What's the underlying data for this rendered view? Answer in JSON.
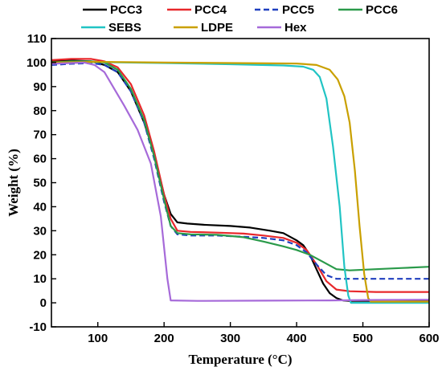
{
  "chart_data": {
    "type": "line",
    "title": "",
    "xlabel": "Temperature (°C)",
    "ylabel": "Weight (%)",
    "xlim": [
      30,
      600
    ],
    "ylim": [
      -10,
      110
    ],
    "xticks": [
      100,
      200,
      300,
      400,
      500,
      600
    ],
    "yticks": [
      -10,
      0,
      10,
      20,
      30,
      40,
      50,
      60,
      70,
      80,
      90,
      100,
      110
    ],
    "grid": false,
    "legend": "top",
    "series": [
      {
        "name": "PCC3",
        "color": "#000000",
        "dash": "solid",
        "points": [
          [
            30,
            100.5
          ],
          [
            60,
            100.8
          ],
          [
            90,
            100.5
          ],
          [
            110,
            99
          ],
          [
            130,
            96
          ],
          [
            150,
            88
          ],
          [
            170,
            75
          ],
          [
            185,
            62
          ],
          [
            200,
            45
          ],
          [
            210,
            37
          ],
          [
            220,
            33.5
          ],
          [
            235,
            33
          ],
          [
            260,
            32.5
          ],
          [
            300,
            32
          ],
          [
            330,
            31.3
          ],
          [
            360,
            30
          ],
          [
            380,
            29
          ],
          [
            400,
            26
          ],
          [
            410,
            24
          ],
          [
            420,
            20
          ],
          [
            430,
            14
          ],
          [
            440,
            8
          ],
          [
            450,
            4
          ],
          [
            460,
            2
          ],
          [
            470,
            1
          ],
          [
            480,
            0.8
          ],
          [
            520,
            0.8
          ],
          [
            600,
            0.8
          ]
        ]
      },
      {
        "name": "PCC4",
        "color": "#e8282b",
        "dash": "solid",
        "points": [
          [
            30,
            101
          ],
          [
            60,
            101.5
          ],
          [
            90,
            101.5
          ],
          [
            110,
            100.5
          ],
          [
            130,
            98
          ],
          [
            150,
            91
          ],
          [
            170,
            78
          ],
          [
            185,
            63
          ],
          [
            200,
            45
          ],
          [
            210,
            35
          ],
          [
            220,
            30
          ],
          [
            240,
            29.5
          ],
          [
            280,
            29.2
          ],
          [
            320,
            28.8
          ],
          [
            350,
            28
          ],
          [
            380,
            27
          ],
          [
            400,
            25
          ],
          [
            415,
            22
          ],
          [
            430,
            16
          ],
          [
            445,
            9
          ],
          [
            460,
            5.5
          ],
          [
            480,
            4.8
          ],
          [
            520,
            4.5
          ],
          [
            600,
            4.5
          ]
        ]
      },
      {
        "name": "PCC5",
        "color": "#1f3fbf",
        "dash": "dashed",
        "points": [
          [
            30,
            99
          ],
          [
            60,
            99.5
          ],
          [
            90,
            99.8
          ],
          [
            110,
            99
          ],
          [
            130,
            96
          ],
          [
            150,
            88
          ],
          [
            170,
            75
          ],
          [
            185,
            60
          ],
          [
            200,
            42
          ],
          [
            210,
            32
          ],
          [
            220,
            28.5
          ],
          [
            240,
            28
          ],
          [
            280,
            28
          ],
          [
            320,
            27.5
          ],
          [
            350,
            27
          ],
          [
            380,
            26
          ],
          [
            400,
            24
          ],
          [
            415,
            21
          ],
          [
            430,
            16
          ],
          [
            445,
            11.5
          ],
          [
            460,
            10
          ],
          [
            480,
            10
          ],
          [
            520,
            10
          ],
          [
            600,
            10
          ]
        ]
      },
      {
        "name": "PCC6",
        "color": "#2a9a4a",
        "dash": "solid",
        "points": [
          [
            30,
            100
          ],
          [
            60,
            100.5
          ],
          [
            90,
            100.5
          ],
          [
            110,
            100
          ],
          [
            130,
            97
          ],
          [
            150,
            89
          ],
          [
            170,
            76
          ],
          [
            185,
            61
          ],
          [
            200,
            43
          ],
          [
            210,
            32
          ],
          [
            220,
            29
          ],
          [
            240,
            28.5
          ],
          [
            280,
            28.3
          ],
          [
            320,
            27.3
          ],
          [
            350,
            25.5
          ],
          [
            380,
            23.5
          ],
          [
            400,
            22
          ],
          [
            420,
            20
          ],
          [
            440,
            17
          ],
          [
            460,
            14
          ],
          [
            480,
            13.5
          ],
          [
            520,
            14
          ],
          [
            560,
            14.5
          ],
          [
            600,
            15
          ]
        ]
      },
      {
        "name": "SEBS",
        "color": "#21c4c4",
        "dash": "solid",
        "points": [
          [
            30,
            100
          ],
          [
            100,
            100.2
          ],
          [
            200,
            99.8
          ],
          [
            300,
            99.3
          ],
          [
            380,
            98.8
          ],
          [
            410,
            98.3
          ],
          [
            425,
            97
          ],
          [
            435,
            94
          ],
          [
            445,
            85
          ],
          [
            455,
            65
          ],
          [
            465,
            40
          ],
          [
            472,
            15
          ],
          [
            478,
            3
          ],
          [
            482,
            0
          ],
          [
            600,
            0
          ]
        ]
      },
      {
        "name": "LDPE",
        "color": "#c9a000",
        "dash": "solid",
        "points": [
          [
            30,
            100
          ],
          [
            100,
            100.3
          ],
          [
            200,
            100
          ],
          [
            300,
            99.8
          ],
          [
            400,
            99.6
          ],
          [
            430,
            99
          ],
          [
            450,
            97
          ],
          [
            462,
            93
          ],
          [
            472,
            86
          ],
          [
            480,
            75
          ],
          [
            488,
            55
          ],
          [
            495,
            32
          ],
          [
            502,
            12
          ],
          [
            508,
            2
          ],
          [
            512,
            0.5
          ],
          [
            530,
            0.5
          ],
          [
            600,
            0.5
          ]
        ]
      },
      {
        "name": "Hex",
        "color": "#a66ad9",
        "dash": "solid",
        "points": [
          [
            30,
            99.5
          ],
          [
            60,
            99.8
          ],
          [
            80,
            100
          ],
          [
            95,
            99
          ],
          [
            110,
            96
          ],
          [
            125,
            89
          ],
          [
            140,
            82
          ],
          [
            160,
            72
          ],
          [
            180,
            58
          ],
          [
            195,
            36
          ],
          [
            205,
            10
          ],
          [
            210,
            1
          ],
          [
            250,
            0.8
          ],
          [
            350,
            0.9
          ],
          [
            450,
            1
          ],
          [
            520,
            1.2
          ],
          [
            600,
            1.3
          ]
        ]
      }
    ]
  }
}
